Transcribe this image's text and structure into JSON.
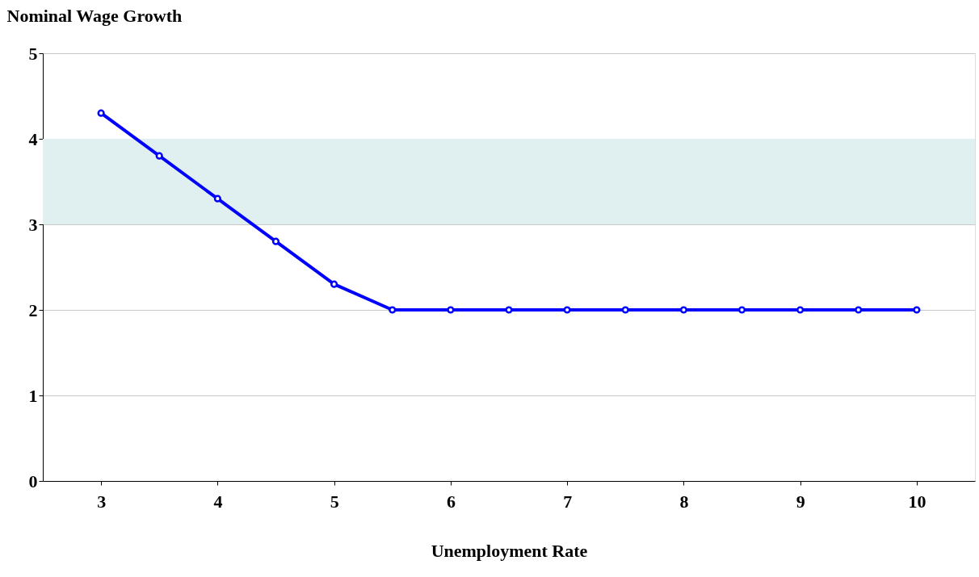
{
  "chart_data": {
    "type": "line",
    "xlabel": "Unemployment Rate",
    "ylabel": "Nominal Wage Growth",
    "x": [
      3,
      3.5,
      4,
      4.5,
      5,
      5.5,
      6,
      6.5,
      7,
      7.5,
      8,
      8.5,
      9,
      9.5,
      10
    ],
    "series": [
      {
        "color": "#0000ff",
        "values": [
          4.3,
          3.8,
          3.3,
          2.8,
          2.3,
          2,
          2,
          2,
          2,
          2,
          2,
          2,
          2,
          2,
          2
        ]
      }
    ],
    "xlim": [
      2.5,
      10.5
    ],
    "xticks": [
      3,
      4,
      5,
      6,
      7,
      8,
      9,
      10
    ],
    "ylim": [
      0,
      5
    ],
    "yticks": [
      0,
      1,
      2,
      3,
      4,
      5
    ],
    "bands": [
      {
        "axis": "y",
        "from": 3,
        "to": 4,
        "color": "#e0efef"
      }
    ],
    "grid": "y",
    "marker": "circle",
    "line_style": "solid"
  }
}
